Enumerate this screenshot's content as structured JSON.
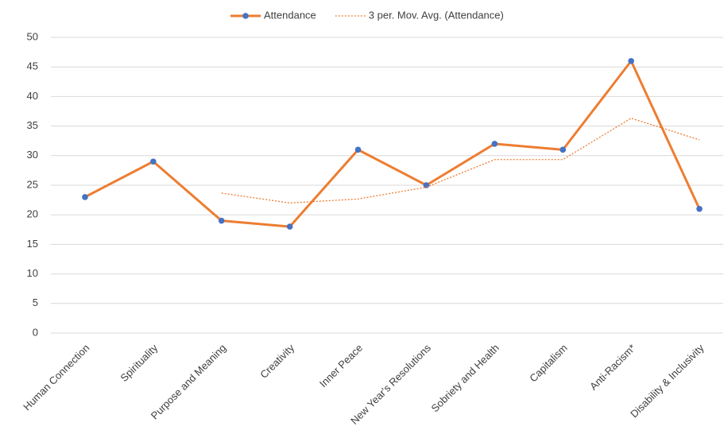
{
  "chart_data": {
    "type": "line",
    "categories": [
      "Human Connection",
      "Spirituality",
      "Purpose and Meaning",
      "Creativity",
      "Inner Peace",
      "New Year's Resolutions",
      "Sobriety and Health",
      "Capitalism",
      "Anti-Racism*",
      "Disability & Inclusivity"
    ],
    "series": [
      {
        "name": "Attendance",
        "color": "#ed7d31",
        "marker_color": "#4472c4",
        "values": [
          23,
          29,
          19,
          18,
          31,
          25,
          32,
          31,
          46,
          21
        ]
      },
      {
        "name": "3 per. Mov. Avg. (Attendance)",
        "color": "#ed7d31",
        "dash": "dotted",
        "values": [
          null,
          null,
          23.67,
          22,
          22.67,
          24.67,
          29.33,
          29.33,
          36.33,
          32.67
        ]
      }
    ],
    "ylim": [
      0,
      50
    ],
    "yticks": [
      0,
      5,
      10,
      15,
      20,
      25,
      30,
      35,
      40,
      45,
      50
    ],
    "grid": true,
    "legend": "top"
  }
}
